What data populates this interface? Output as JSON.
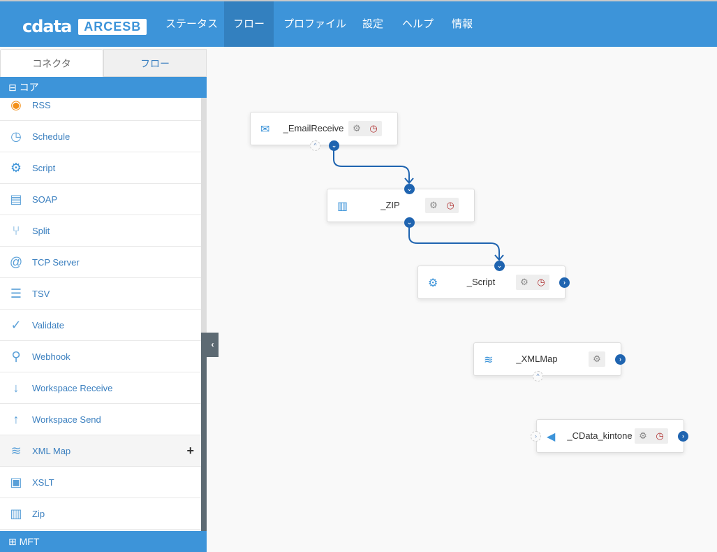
{
  "header": {
    "logo_brand": "cdata",
    "logo_product": "ARCESB",
    "nav": [
      {
        "label": "ステータス",
        "active": false
      },
      {
        "label": "フロー",
        "active": true
      },
      {
        "label": "プロファイル",
        "active": false
      },
      {
        "label": "設定",
        "active": false
      },
      {
        "label": "ヘルプ",
        "active": false
      },
      {
        "label": "情報",
        "active": false
      }
    ]
  },
  "sidebar": {
    "tabs": [
      {
        "label": "コネクタ",
        "active": true
      },
      {
        "label": "フロー",
        "active": false
      }
    ],
    "section_core": "コア",
    "section_next": "MFT",
    "items": [
      {
        "label": "RSS",
        "icon": "rss-icon"
      },
      {
        "label": "Schedule",
        "icon": "schedule-icon"
      },
      {
        "label": "Script",
        "icon": "script-icon"
      },
      {
        "label": "SOAP",
        "icon": "soap-icon"
      },
      {
        "label": "Split",
        "icon": "split-icon"
      },
      {
        "label": "TCP Server",
        "icon": "tcp-icon"
      },
      {
        "label": "TSV",
        "icon": "tsv-icon"
      },
      {
        "label": "Validate",
        "icon": "validate-icon"
      },
      {
        "label": "Webhook",
        "icon": "webhook-icon"
      },
      {
        "label": "Workspace Receive",
        "icon": "workspace-receive-icon"
      },
      {
        "label": "Workspace Send",
        "icon": "workspace-send-icon"
      },
      {
        "label": "XML Map",
        "icon": "xmlmap-icon",
        "hovered": true,
        "add": "+"
      },
      {
        "label": "XSLT",
        "icon": "xslt-icon"
      },
      {
        "label": "Zip",
        "icon": "zip-icon"
      }
    ],
    "collapse_icon": "‹"
  },
  "flow": {
    "nodes": [
      {
        "name": "_EmailReceive",
        "settings": true,
        "schedule": true
      },
      {
        "name": "_ZIP",
        "settings": true,
        "schedule": true
      },
      {
        "name": "_Script",
        "settings": true,
        "schedule": true
      },
      {
        "name": "_XMLMap",
        "settings": true,
        "schedule": false
      },
      {
        "name": "_CData_kintone",
        "settings": true,
        "schedule": true
      }
    ],
    "connections": [
      [
        "_EmailReceive",
        "_ZIP"
      ],
      [
        "_ZIP",
        "_Script"
      ]
    ]
  },
  "colors": {
    "brand": "#3d94d9",
    "active_nav": "#3380bf",
    "port": "#1f64b0",
    "clock": "#b03030"
  }
}
